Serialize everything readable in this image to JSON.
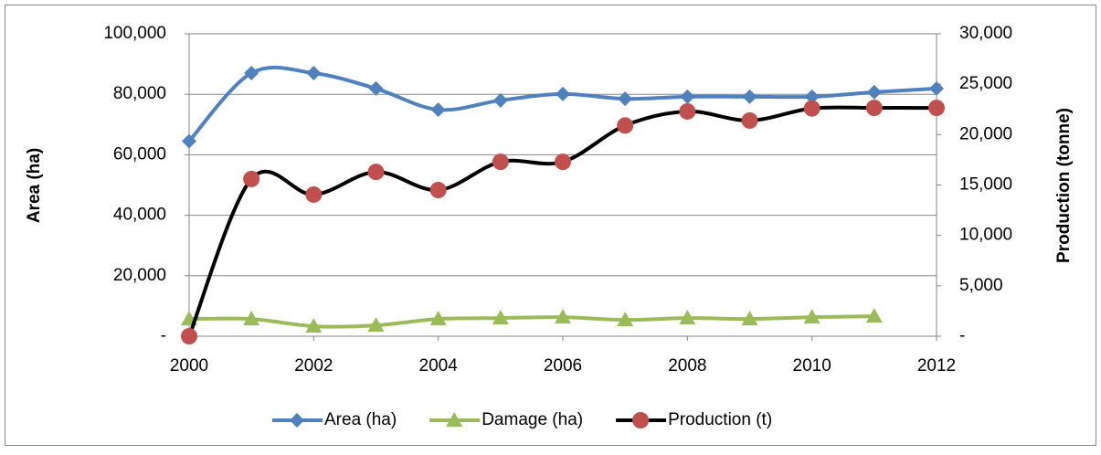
{
  "chart_data": {
    "type": "line",
    "x": [
      2000,
      2001,
      2002,
      2003,
      2004,
      2005,
      2006,
      2007,
      2008,
      2009,
      2010,
      2011,
      2012
    ],
    "series": [
      {
        "name": "Area (ha)",
        "color": "#4f81bd",
        "marker": "diamond",
        "values": [
          64500,
          87000,
          87000,
          81900,
          74900,
          78000,
          80100,
          78500,
          79200,
          79200,
          79200,
          80700,
          81900
        ]
      },
      {
        "name": "Damage (ha)",
        "color": "#9bbb59",
        "marker": "triangle",
        "values": [
          5700,
          5700,
          3300,
          3600,
          5700,
          6000,
          6300,
          5400,
          6000,
          5700,
          6300,
          6600,
          null
        ]
      },
      {
        "name": "Production (t)",
        "color": "#000000",
        "marker_color": "#c0504d",
        "marker": "circle",
        "axis": "y2",
        "values": [
          0,
          15600,
          14050,
          16300,
          14500,
          17300,
          17300,
          20900,
          22300,
          21400,
          22600,
          22650,
          22650
        ]
      }
    ],
    "y_label": "Area (ha)",
    "y2_label": "Production (tonne)",
    "xlim": [
      2000,
      2012
    ],
    "xticks": [
      2000,
      2002,
      2004,
      2006,
      2008,
      2010,
      2012
    ],
    "ylim": [
      0,
      100000
    ],
    "yticks": [
      {
        "value": 0,
        "label": "-"
      },
      {
        "value": 20000,
        "label": "20,000"
      },
      {
        "value": 40000,
        "label": "40,000"
      },
      {
        "value": 60000,
        "label": "60,000"
      },
      {
        "value": 80000,
        "label": "80,000"
      },
      {
        "value": 100000,
        "label": "100,000"
      }
    ],
    "y2lim": [
      0,
      30000
    ],
    "y2ticks": [
      {
        "value": 0,
        "label": "-"
      },
      {
        "value": 5000,
        "label": "5,000"
      },
      {
        "value": 10000,
        "label": "10,000"
      },
      {
        "value": 15000,
        "label": "15,000"
      },
      {
        "value": 20000,
        "label": "20,000"
      },
      {
        "value": 25000,
        "label": "25,000"
      },
      {
        "value": 30000,
        "label": "30,000"
      }
    ],
    "grid": true,
    "legend": "bottom",
    "smooth": true
  }
}
